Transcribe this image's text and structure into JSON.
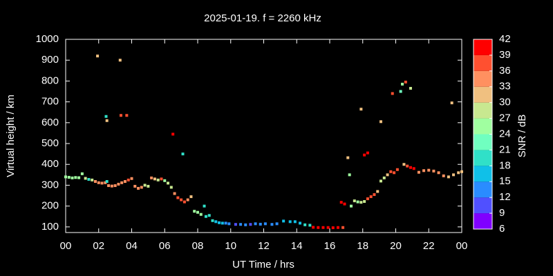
{
  "chart_data": {
    "type": "scatter",
    "title": "2025-01-19. f = 2260 kHz",
    "x_label": "UT Time / hrs",
    "y_label": "Virtual height / km",
    "xlim": [
      0,
      24
    ],
    "ylim": [
      73,
      1000
    ],
    "xticks": [
      {
        "value": 0,
        "label": "00"
      },
      {
        "value": 2,
        "label": "02"
      },
      {
        "value": 4,
        "label": "04"
      },
      {
        "value": 6,
        "label": "06"
      },
      {
        "value": 8,
        "label": "08"
      },
      10,
      12,
      14,
      16,
      18,
      20,
      22,
      {
        "value": 24,
        "label": "00"
      }
    ],
    "yticks": [
      100,
      200,
      300,
      400,
      500,
      600,
      700,
      800,
      900,
      1000
    ],
    "colorbar": {
      "label": "SNR / dB",
      "lim": [
        6,
        42
      ],
      "ticks": [
        6,
        9,
        12,
        15,
        18,
        21,
        24,
        27,
        30,
        33,
        36,
        39,
        42
      ],
      "colors": [
        "#8000ff",
        "#5050ff",
        "#2a8cff",
        "#10c0e8",
        "#30e0c8",
        "#70ffc0",
        "#a0ffa0",
        "#c8e890",
        "#f0c080",
        "#ff9060",
        "#ff5030",
        "#ff0000"
      ]
    },
    "x": [
      0.0,
      0.2,
      0.4,
      0.6,
      0.8,
      1.0,
      1.2,
      1.4,
      1.6,
      1.8,
      2.0,
      2.2,
      2.4,
      2.5,
      2.6,
      2.8,
      3.0,
      3.2,
      3.4,
      3.6,
      3.8,
      4.0,
      4.2,
      4.4,
      4.6,
      4.8,
      5.0,
      5.2,
      5.4,
      5.6,
      5.8,
      6.0,
      6.2,
      6.4,
      6.6,
      6.8,
      7.0,
      7.2,
      7.4,
      7.6,
      7.8,
      8.0,
      8.2,
      8.4,
      8.5,
      8.7,
      8.9,
      9.1,
      9.3,
      9.5,
      9.7,
      9.9,
      10.3,
      10.6,
      10.9,
      11.2,
      11.5,
      11.8,
      12.1,
      12.5,
      12.8,
      13.2,
      13.6,
      13.9,
      14.2,
      14.5,
      14.8,
      15.0,
      15.3,
      15.6,
      15.9,
      16.2,
      16.5,
      16.8,
      16.7,
      16.9,
      17.1,
      17.2,
      17.3,
      17.5,
      17.7,
      17.9,
      18.1,
      18.3,
      18.5,
      18.7,
      18.9,
      19.1,
      19.3,
      19.5,
      19.7,
      19.9,
      20.1,
      20.5,
      20.7,
      20.9,
      21.1,
      21.4,
      21.7,
      22.0,
      22.3,
      22.6,
      22.9,
      23.2,
      23.5,
      23.8,
      24.0,
      1.93,
      2.45,
      2.5,
      3.3,
      3.35,
      3.7,
      6.5,
      7.1,
      17.9,
      18.1,
      18.3,
      19.1,
      19.8,
      20.3,
      20.4,
      20.6,
      20.9,
      23.4
    ],
    "values": [
      340,
      338,
      335,
      337,
      336,
      355,
      333,
      328,
      325,
      318,
      312,
      310,
      312,
      318,
      298,
      296,
      298,
      305,
      312,
      318,
      325,
      332,
      295,
      285,
      290,
      300,
      295,
      335,
      330,
      325,
      330,
      322,
      310,
      290,
      260,
      240,
      230,
      220,
      230,
      245,
      175,
      170,
      160,
      200,
      150,
      155,
      130,
      125,
      120,
      118,
      118,
      115,
      112,
      112,
      110,
      112,
      115,
      113,
      115,
      112,
      115,
      128,
      125,
      125,
      118,
      110,
      108,
      98,
      97,
      97,
      97,
      96,
      97,
      97,
      218,
      210,
      432,
      350,
      200,
      225,
      220,
      218,
      222,
      235,
      245,
      255,
      270,
      320,
      335,
      350,
      365,
      360,
      375,
      400,
      392,
      385,
      380,
      362,
      370,
      372,
      368,
      360,
      345,
      340,
      350,
      360,
      365,
      920,
      630,
      610,
      900,
      635,
      635,
      545,
      450,
      665,
      445,
      455,
      605,
      740,
      750,
      785,
      795,
      765,
      695
    ],
    "snr": [
      26,
      26,
      26,
      25,
      26,
      26,
      27,
      20,
      27,
      34,
      34,
      33,
      33,
      20,
      33,
      34,
      33,
      35,
      35,
      35,
      37,
      34,
      35,
      35,
      33,
      27,
      27,
      33,
      31,
      28,
      36,
      26,
      27,
      28,
      35,
      38,
      38,
      36,
      35,
      30,
      26,
      25,
      24,
      19,
      19,
      18,
      18,
      16,
      15,
      15,
      14,
      14,
      11,
      12,
      12,
      11,
      12,
      13,
      13,
      14,
      14,
      15,
      15,
      15,
      17,
      18,
      18,
      40,
      40,
      39,
      40,
      40,
      39,
      38,
      40,
      39,
      31,
      26,
      26,
      27,
      26,
      28,
      27,
      36,
      36,
      37,
      30,
      28,
      29,
      30,
      37,
      37,
      38,
      30,
      38,
      39,
      39,
      34,
      34,
      34,
      35,
      34,
      33,
      31,
      31,
      31,
      31,
      31,
      20,
      32,
      31,
      36,
      38,
      40,
      20,
      31,
      40,
      40,
      31,
      36,
      21,
      26,
      36,
      27,
      32
    ]
  }
}
